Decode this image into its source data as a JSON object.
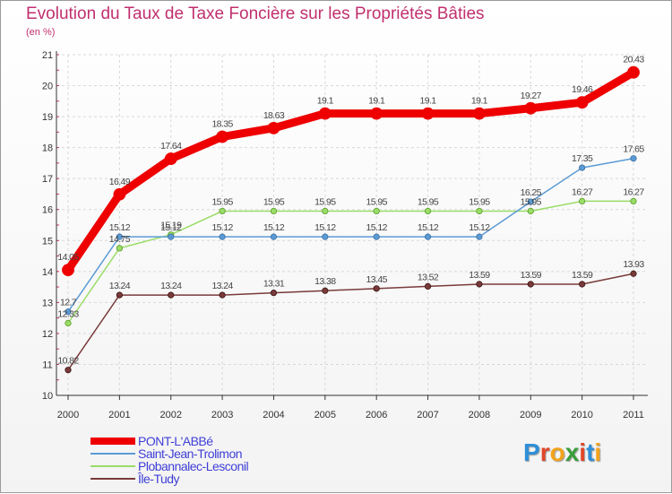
{
  "logo_text": "Proxiti",
  "chart_data": {
    "type": "line",
    "title": "Evolution du Taux de Taxe Foncière sur les Propriétés Bâties",
    "ylabel": "(en %)",
    "xlabel": "",
    "categories": [
      "2000",
      "2001",
      "2002",
      "2003",
      "2004",
      "2005",
      "2006",
      "2007",
      "2008",
      "2009",
      "2010",
      "2011"
    ],
    "ylim": [
      10,
      21
    ],
    "yticks": [
      10,
      11,
      12,
      13,
      14,
      15,
      16,
      17,
      18,
      19,
      20,
      21
    ],
    "grid": true,
    "legend_position": "bottom-left",
    "series": [
      {
        "name": "PONT-L'ABBé",
        "color": "#ee0000",
        "values": [
          14.05,
          16.49,
          17.64,
          18.35,
          18.63,
          19.1,
          19.1,
          19.1,
          19.1,
          19.27,
          19.46,
          20.43
        ],
        "labels": [
          "14.05",
          "16.49",
          "17.64",
          "18.35",
          "18.63",
          "19.1",
          "19.1",
          "19.1",
          "19.1",
          "19.27",
          "19.46",
          "20.43"
        ]
      },
      {
        "name": "Saint-Jean-Trolimon",
        "color": "#5b9bd5",
        "values": [
          12.7,
          15.12,
          15.12,
          15.12,
          15.12,
          15.12,
          15.12,
          15.12,
          15.12,
          16.25,
          17.35,
          17.65
        ],
        "labels": [
          "12.7",
          "15.12",
          "15.12",
          "15.12",
          "15.12",
          "15.12",
          "15.12",
          "15.12",
          "15.12",
          "16.25",
          "17.35",
          "17.65"
        ]
      },
      {
        "name": "Plobannalec-Lesconil",
        "color": "#99dd66",
        "values": [
          12.33,
          14.75,
          15.19,
          15.95,
          15.95,
          15.95,
          15.95,
          15.95,
          15.95,
          15.95,
          16.27,
          16.27
        ],
        "labels": [
          "12.33",
          "14.75",
          "15.19",
          "15.95",
          "15.95",
          "15.95",
          "15.95",
          "15.95",
          "15.95",
          "15.95",
          "16.27",
          "16.27"
        ]
      },
      {
        "name": "Île-Tudy",
        "color": "#7a3a3a",
        "values": [
          10.82,
          13.24,
          13.24,
          13.24,
          13.31,
          13.38,
          13.45,
          13.52,
          13.59,
          13.59,
          13.59,
          13.93
        ],
        "labels": [
          "10.82",
          "13.24",
          "13.24",
          "13.24",
          "13.31",
          "13.38",
          "13.45",
          "13.52",
          "13.59",
          "13.59",
          "13.59",
          "13.93"
        ]
      }
    ]
  }
}
